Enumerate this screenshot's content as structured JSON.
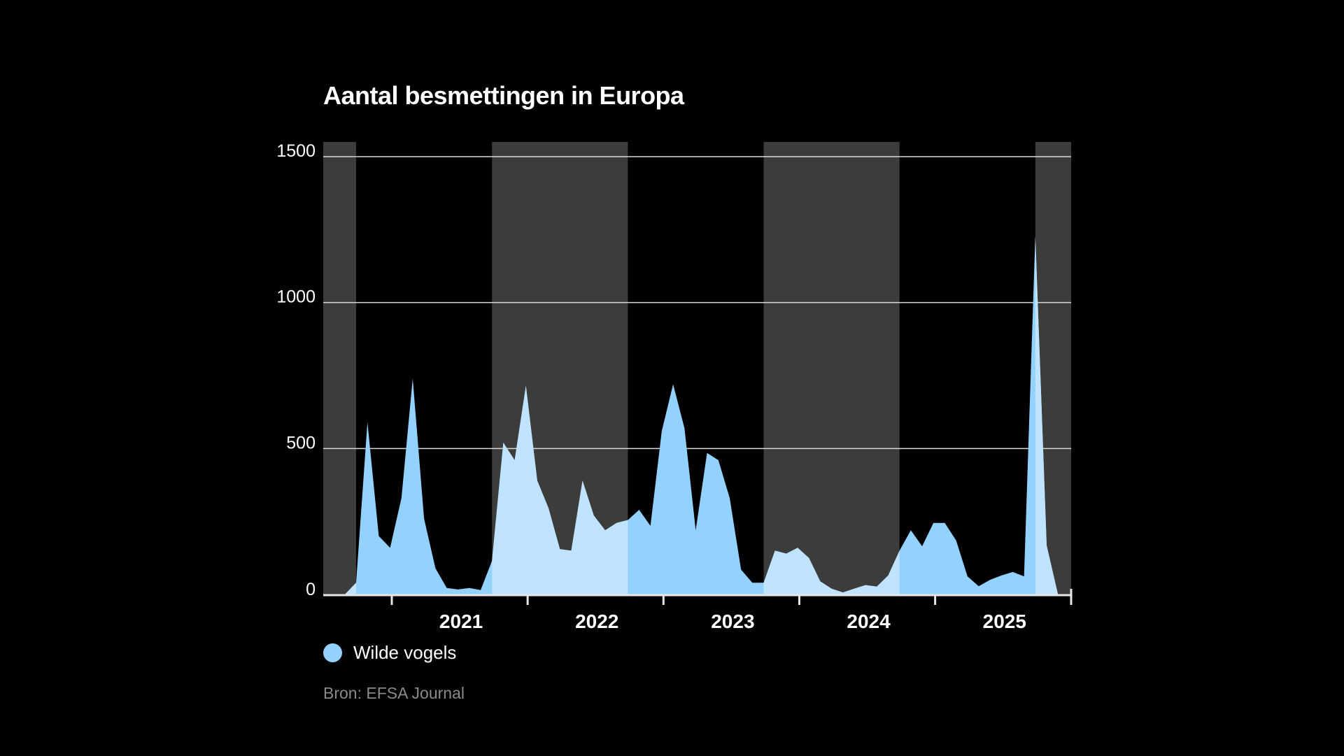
{
  "title": "Aantal besmettingen in Europa",
  "legend": {
    "label": "Wilde vogels",
    "color": "#93d2fe"
  },
  "source": "Bron: EFSA Journal",
  "colors": {
    "background": "#000000",
    "season_band": "#3c3c3b",
    "area_outside_band": "#93d2fe",
    "area_inside_band": "#c0e4ff",
    "gridline": "#d9d9d9",
    "axis": "#e6e6e6"
  },
  "chart_data": {
    "type": "area",
    "title": "Aantal besmettingen in Europa",
    "xlabel": "",
    "ylabel": "",
    "ylim": [
      0,
      1500
    ],
    "yticks": [
      0,
      500,
      1000,
      1500
    ],
    "ytick_labels": [
      "0",
      "500",
      "1000",
      "1500"
    ],
    "xticks": [
      "2021",
      "2022",
      "2023",
      "2024",
      "2025"
    ],
    "grid": "horizontal",
    "legend_position": "bottom-left",
    "x_range_months": [
      "2020-07",
      "2025-12"
    ],
    "season_bands": [
      {
        "start": "2020-07",
        "end": "2020-10"
      },
      {
        "start": "2021-10",
        "end": "2022-10"
      },
      {
        "start": "2023-10",
        "end": "2024-10"
      },
      {
        "start": "2025-10",
        "end": "2025-12"
      }
    ],
    "series": [
      {
        "name": "Wilde vogels",
        "x": [
          "2020-09",
          "2020-10",
          "2020-11",
          "2020-12",
          "2021-01",
          "2021-02",
          "2021-03",
          "2021-04",
          "2021-05",
          "2021-06",
          "2021-07",
          "2021-08",
          "2021-09",
          "2021-10",
          "2021-11",
          "2021-12",
          "2022-01",
          "2022-02",
          "2022-03",
          "2022-04",
          "2022-05",
          "2022-06",
          "2022-07",
          "2022-08",
          "2022-09",
          "2022-10",
          "2022-11",
          "2022-12",
          "2023-01",
          "2023-02",
          "2023-03",
          "2023-04",
          "2023-05",
          "2023-06",
          "2023-07",
          "2023-08",
          "2023-09",
          "2023-10",
          "2023-11",
          "2023-12",
          "2024-01",
          "2024-02",
          "2024-03",
          "2024-04",
          "2024-05",
          "2024-06",
          "2024-07",
          "2024-08",
          "2024-09",
          "2024-10",
          "2024-11",
          "2024-12",
          "2025-01",
          "2025-02",
          "2025-03",
          "2025-04",
          "2025-05",
          "2025-06",
          "2025-07",
          "2025-08",
          "2025-09",
          "2025-10",
          "2025-11",
          "2025-12"
        ],
        "values": [
          0,
          40,
          590,
          200,
          160,
          330,
          740,
          260,
          90,
          22,
          17,
          22,
          15,
          115,
          520,
          460,
          715,
          390,
          295,
          155,
          150,
          390,
          270,
          220,
          245,
          255,
          290,
          235,
          560,
          720,
          570,
          220,
          485,
          460,
          330,
          85,
          40,
          40,
          150,
          140,
          160,
          125,
          45,
          20,
          7,
          20,
          32,
          27,
          65,
          150,
          220,
          165,
          245,
          245,
          185,
          62,
          28,
          50,
          65,
          77,
          62,
          1228,
          168,
          0
        ]
      }
    ]
  }
}
